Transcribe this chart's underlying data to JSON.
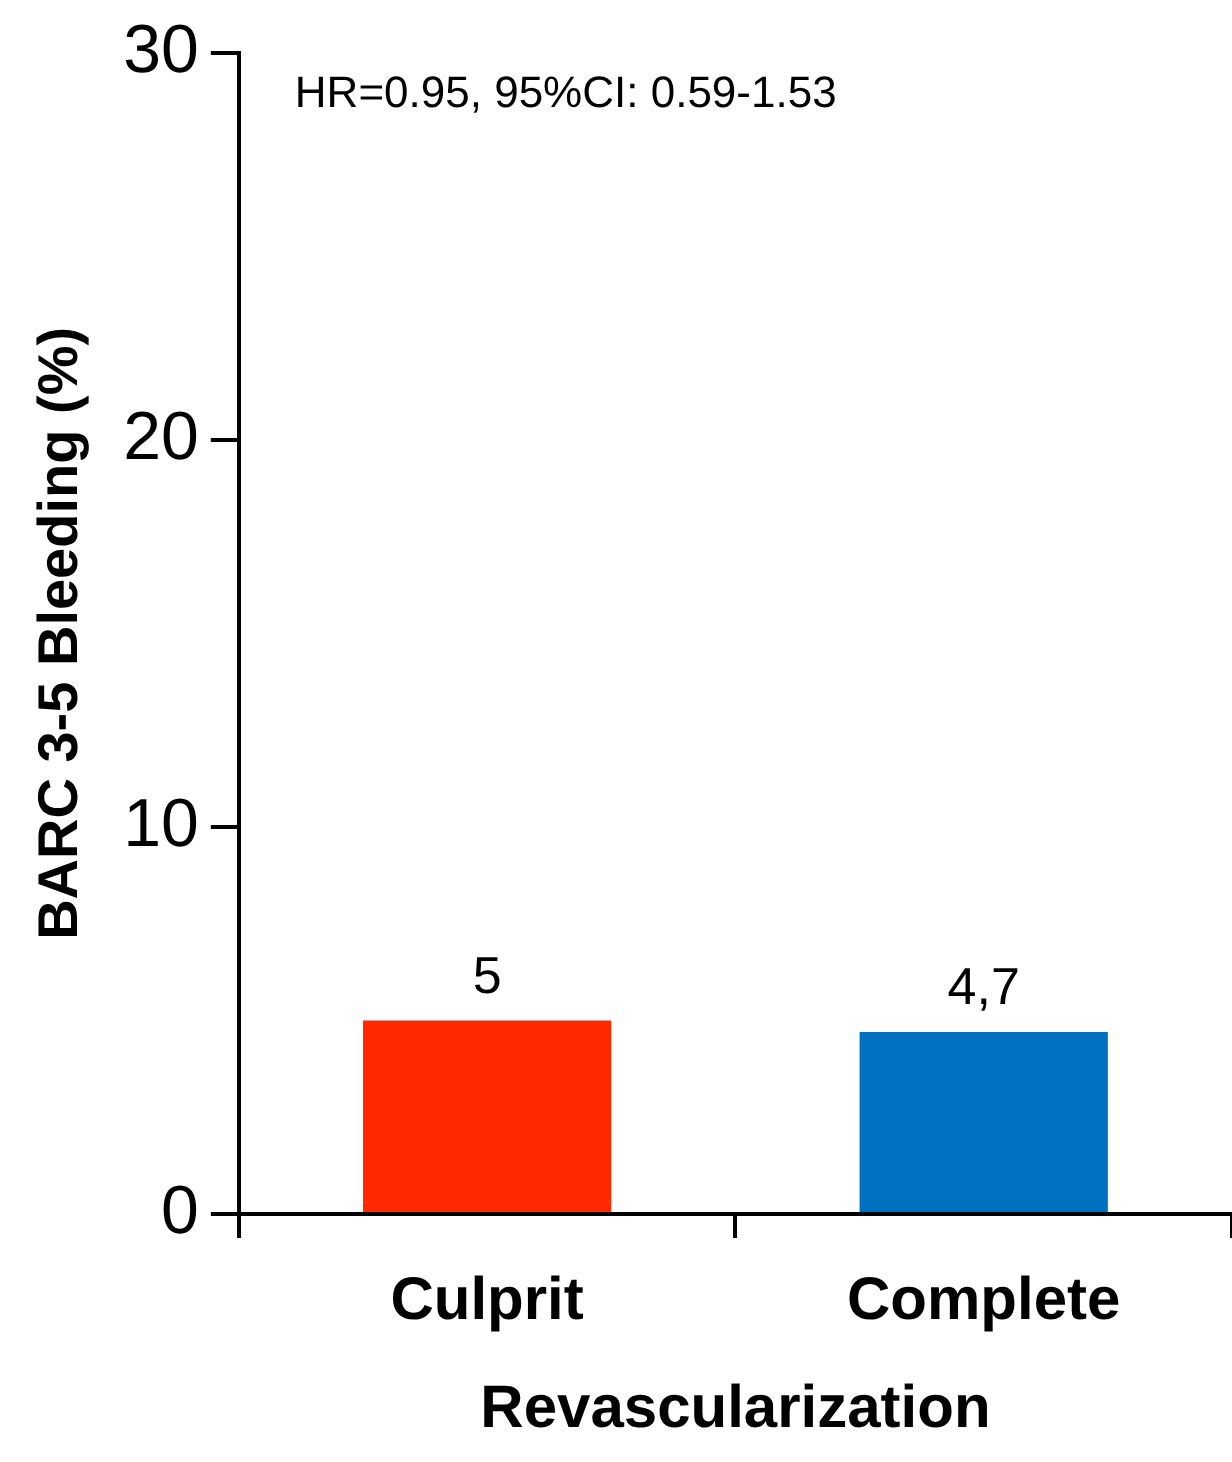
{
  "chart_data": {
    "type": "bar",
    "xlabel": "Revascularization",
    "ylabel": "BARC 3-5 Bleeding (%)",
    "categories": [
      "Culprit",
      "Complete"
    ],
    "values": [
      5,
      4.7
    ],
    "colors": [
      "#ff2a00",
      "#0070c0"
    ],
    "value_labels": [
      "5",
      "4,7"
    ],
    "ylim": [
      0,
      30
    ],
    "yticks": [
      0,
      10,
      20,
      30
    ],
    "annotations": [
      "HR=0.95, 95%CI: 0.59-1.53"
    ],
    "grid": false,
    "legend": false
  }
}
